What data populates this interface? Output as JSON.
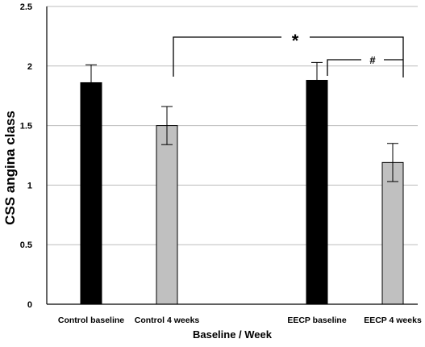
{
  "chart_data": {
    "type": "bar",
    "title": "",
    "xlabel": "Baseline / Week",
    "ylabel": "CSS angina class",
    "ylim": [
      0,
      2.5
    ],
    "yticks": [
      "0",
      "0.5",
      "1",
      "1.5",
      "2",
      "2.5"
    ],
    "grid": true,
    "categories": [
      "Control baseline",
      "Control 4 weeks",
      "EECP baseline",
      "EECP 4 weeks"
    ],
    "values": [
      1.86,
      1.5,
      1.88,
      1.19
    ],
    "error_bars": [
      0.15,
      0.16,
      0.15,
      0.16
    ],
    "bar_colors": [
      "#000000",
      "#c0c0c0",
      "#000000",
      "#c0c0c0"
    ],
    "annotations": [
      "*",
      "#"
    ]
  }
}
